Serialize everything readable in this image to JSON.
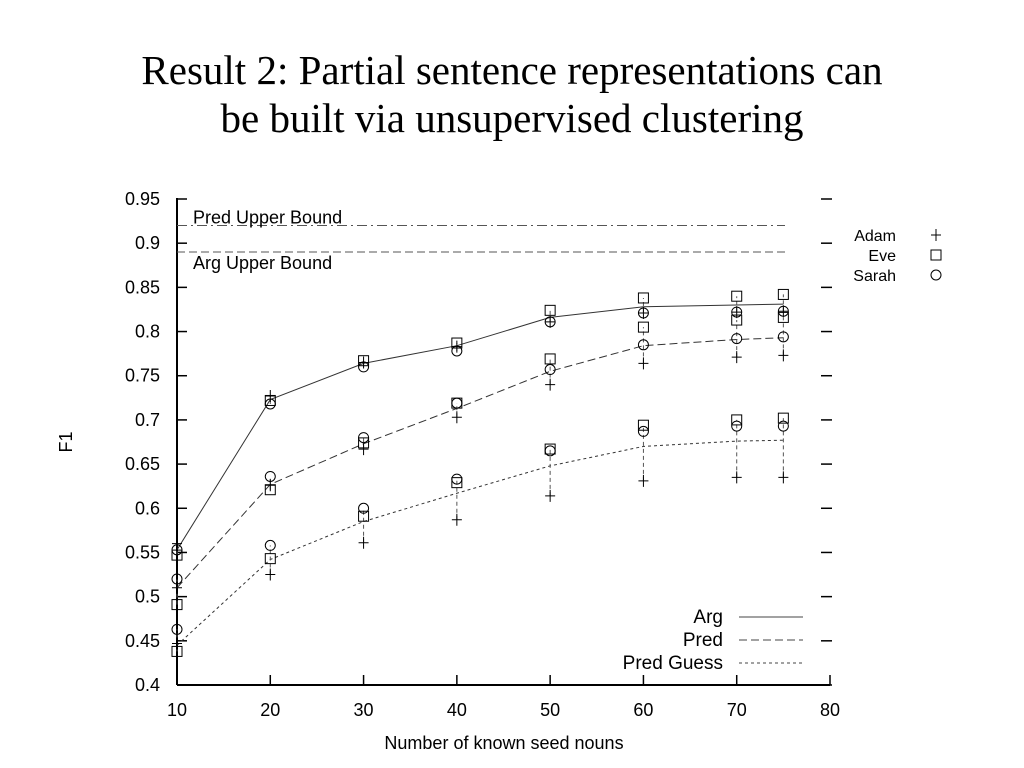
{
  "slide": {
    "title_line1": "Result 2: Partial sentence representations can",
    "title_line2": "be built via unsupervised clustering"
  },
  "chart_data": {
    "type": "line",
    "xlabel": "Number of known seed nouns",
    "ylabel": "F1",
    "xlim": [
      10,
      80
    ],
    "ylim": [
      0.4,
      0.95
    ],
    "xticks": [
      10,
      20,
      30,
      40,
      50,
      60,
      70,
      80
    ],
    "yticks": [
      0.4,
      0.45,
      0.5,
      0.55,
      0.6,
      0.65,
      0.7,
      0.75,
      0.8,
      0.85,
      0.9,
      0.95
    ],
    "ytick_labels": [
      "0.4",
      "0.45",
      "0.5",
      "0.55",
      "0.6",
      "0.65",
      "0.7",
      "0.75",
      "0.8",
      "0.85",
      "0.9",
      "0.95"
    ],
    "grid": false,
    "x": [
      10,
      20,
      30,
      40,
      50,
      60,
      70,
      75
    ],
    "reference_lines": [
      {
        "name": "Pred Upper Bound",
        "value": 0.92,
        "style": "dash-dot"
      },
      {
        "name": "Arg Upper Bound",
        "value": 0.89,
        "style": "dashed"
      }
    ],
    "series": [
      {
        "name": "Arg",
        "style": "solid",
        "values": [
          0.553,
          0.723,
          0.764,
          0.784,
          0.816,
          0.828,
          0.83,
          0.831
        ],
        "points": {
          "Adam": [
            0.56,
            0.727,
            0.765,
            0.783,
            0.811,
            0.821,
            0.822,
            0.823
          ],
          "Eve": [
            0.547,
            0.722,
            0.767,
            0.787,
            0.824,
            0.838,
            0.84,
            0.842
          ],
          "Sarah": [
            0.553,
            0.718,
            0.76,
            0.778,
            0.811,
            0.821,
            0.822,
            0.823
          ]
        }
      },
      {
        "name": "Pred",
        "style": "dashed",
        "values": [
          0.51,
          0.627,
          0.673,
          0.713,
          0.755,
          0.784,
          0.791,
          0.793
        ],
        "points": {
          "Adam": [
            0.51,
            0.626,
            0.667,
            0.703,
            0.74,
            0.764,
            0.771,
            0.773
          ],
          "Eve": [
            0.491,
            0.621,
            0.674,
            0.719,
            0.769,
            0.805,
            0.813,
            0.816
          ],
          "Sarah": [
            0.52,
            0.636,
            0.68,
            0.719,
            0.757,
            0.785,
            0.792,
            0.794
          ]
        }
      },
      {
        "name": "Pred Guess",
        "style": "dotted",
        "values": [
          0.445,
          0.542,
          0.585,
          0.617,
          0.648,
          0.67,
          0.676,
          0.677
        ],
        "points": {
          "Adam": [
            0.447,
            0.525,
            0.561,
            0.587,
            0.614,
            0.631,
            0.635,
            0.635
          ],
          "Eve": [
            0.438,
            0.543,
            0.591,
            0.629,
            0.667,
            0.694,
            0.7,
            0.702
          ],
          "Sarah": [
            0.463,
            0.558,
            0.6,
            0.633,
            0.665,
            0.687,
            0.693,
            0.693
          ]
        }
      }
    ],
    "legend_lines": {
      "position": "bottom-right",
      "entries": [
        "Arg",
        "Pred",
        "Pred Guess"
      ]
    },
    "legend_markers": {
      "position": "right-outside-top",
      "entries": [
        {
          "name": "Adam",
          "marker": "plus"
        },
        {
          "name": "Eve",
          "marker": "square"
        },
        {
          "name": "Sarah",
          "marker": "circle"
        }
      ]
    }
  }
}
